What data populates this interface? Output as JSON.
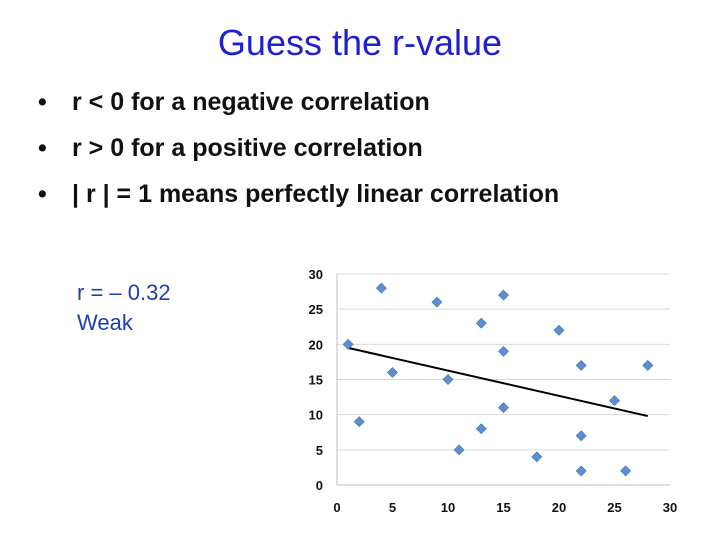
{
  "slide": {
    "title": "Guess the r-value",
    "bullets": [
      "r < 0 for a negative correlation",
      "r > 0  for a positive correlation",
      "| r | = 1 means perfectly linear correlation"
    ],
    "bullet_symbol": "•",
    "annotation_line1": "r = – 0.32",
    "annotation_line2": "Weak"
  },
  "colors": {
    "title": "#1f1fcc",
    "annotation": "#1f3fae",
    "point": "#5b8fd1",
    "trendline": "#000000",
    "grid": "#d9d9d9"
  },
  "chart_data": {
    "type": "scatter",
    "title": "",
    "xlabel": "",
    "ylabel": "",
    "xlim": [
      0,
      30
    ],
    "ylim": [
      0,
      30
    ],
    "xticks": [
      0,
      5,
      10,
      15,
      20,
      25,
      30
    ],
    "yticks": [
      0,
      5,
      10,
      15,
      20,
      25,
      30
    ],
    "grid": "horizontal",
    "marker": "diamond",
    "points": [
      {
        "x": 1,
        "y": 20
      },
      {
        "x": 2,
        "y": 9
      },
      {
        "x": 4,
        "y": 28
      },
      {
        "x": 5,
        "y": 16
      },
      {
        "x": 9,
        "y": 26
      },
      {
        "x": 10,
        "y": 15
      },
      {
        "x": 11,
        "y": 5
      },
      {
        "x": 13,
        "y": 23
      },
      {
        "x": 13,
        "y": 8
      },
      {
        "x": 15,
        "y": 27
      },
      {
        "x": 15,
        "y": 19
      },
      {
        "x": 15,
        "y": 11
      },
      {
        "x": 18,
        "y": 4
      },
      {
        "x": 20,
        "y": 22
      },
      {
        "x": 22,
        "y": 17
      },
      {
        "x": 22,
        "y": 7
      },
      {
        "x": 22,
        "y": 2
      },
      {
        "x": 25,
        "y": 12
      },
      {
        "x": 26,
        "y": 2
      },
      {
        "x": 28,
        "y": 17
      }
    ],
    "trendline": {
      "x1": 1,
      "y1": 19.5,
      "x2": 28,
      "y2": 9.8
    }
  }
}
